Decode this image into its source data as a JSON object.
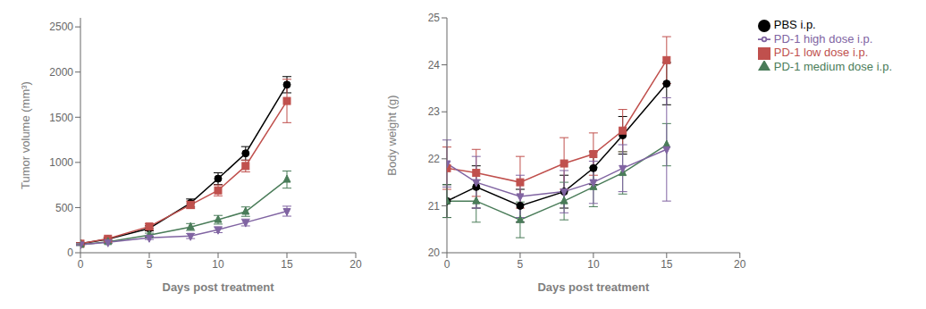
{
  "chart_data": [
    {
      "type": "line",
      "x_label": "Days post treatment",
      "y_label": "Tumor volume (mm³)",
      "x": [
        0,
        2,
        5,
        8,
        10,
        12,
        15
      ],
      "xlim": [
        0,
        20
      ],
      "xticks": [
        0,
        5,
        10,
        15,
        20
      ],
      "ylim": [
        0,
        2600
      ],
      "yticks": [
        0,
        500,
        1000,
        1500,
        2000,
        2500
      ],
      "grid": false,
      "series": [
        {
          "name": "PBS i.p.",
          "color": "#000000",
          "marker": "circle",
          "values": [
            100,
            150,
            270,
            550,
            820,
            1100,
            1860
          ],
          "errors": [
            12,
            18,
            28,
            45,
            65,
            75,
            90
          ]
        },
        {
          "name": "PD-1 low dose i.p.",
          "color": "#c0504d",
          "marker": "square",
          "values": [
            100,
            155,
            290,
            530,
            690,
            960,
            1680
          ],
          "errors": [
            12,
            18,
            32,
            42,
            60,
            65,
            240
          ]
        },
        {
          "name": "PD-1 medium dose i.p.",
          "color": "#4a7c59",
          "marker": "triangle-up",
          "values": [
            90,
            120,
            195,
            285,
            365,
            455,
            810
          ],
          "errors": [
            10,
            14,
            22,
            38,
            48,
            52,
            95
          ]
        },
        {
          "name": "PD-1 high dose i.p.",
          "color": "#8064a2",
          "marker": "triangle-down",
          "values": [
            90,
            115,
            165,
            185,
            255,
            335,
            460
          ],
          "errors": [
            9,
            13,
            18,
            28,
            32,
            38,
            55
          ]
        }
      ]
    },
    {
      "type": "line",
      "x_label": "Days post treatment",
      "y_label": "Body weight (g)",
      "x": [
        0,
        2,
        5,
        8,
        10,
        12,
        15
      ],
      "xlim": [
        0,
        20
      ],
      "xticks": [
        0,
        5,
        10,
        15,
        20
      ],
      "ylim": [
        20,
        25
      ],
      "yticks": [
        20,
        21,
        22,
        23,
        24,
        25
      ],
      "grid": false,
      "legend": "right",
      "series": [
        {
          "name": "PBS i.p.",
          "color": "#000000",
          "marker": "circle",
          "values": [
            21.1,
            21.4,
            21.0,
            21.3,
            21.8,
            22.5,
            23.6
          ],
          "errors": [
            0.35,
            0.45,
            0.35,
            0.35,
            0.35,
            0.4,
            0.45
          ]
        },
        {
          "name": "PD-1 low dose i.p.",
          "color": "#c0504d",
          "marker": "square",
          "values": [
            21.8,
            21.7,
            21.5,
            21.9,
            22.1,
            22.6,
            24.1
          ],
          "errors": [
            0.45,
            0.5,
            0.55,
            0.55,
            0.45,
            0.45,
            0.5
          ]
        },
        {
          "name": "PD-1 medium dose i.p.",
          "color": "#4a7c59",
          "marker": "triangle-up",
          "values": [
            21.1,
            21.1,
            20.7,
            21.1,
            21.4,
            21.7,
            22.3
          ],
          "errors": [
            0.35,
            0.45,
            0.38,
            0.4,
            0.42,
            0.45,
            0.45
          ]
        },
        {
          "name": "PD-1 high dose i.p.",
          "color": "#8064a2",
          "marker": "triangle-down",
          "values": [
            21.9,
            21.5,
            21.2,
            21.3,
            21.5,
            21.8,
            22.2
          ],
          "errors": [
            0.5,
            0.55,
            0.45,
            0.45,
            0.45,
            0.5,
            1.1
          ]
        }
      ]
    }
  ]
}
